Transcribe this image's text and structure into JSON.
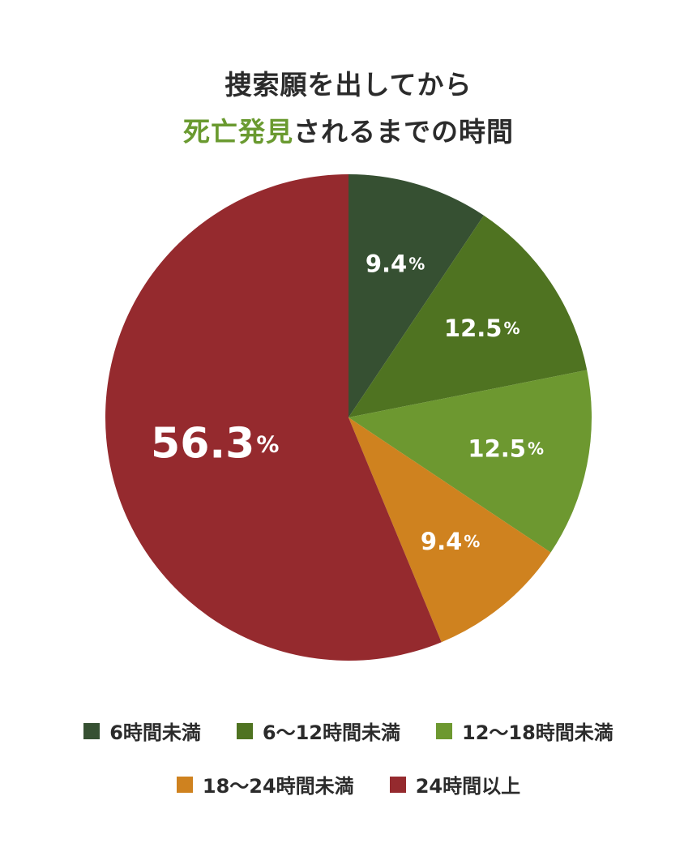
{
  "title": {
    "line1": "捜索願を出してから",
    "line2_accent": "死亡発見",
    "line2_rest": "されるまでの時間",
    "accent_color": "#6a9a30"
  },
  "chart_data": {
    "type": "pie",
    "start_angle_deg": 0,
    "direction": "clockwise",
    "slices": [
      {
        "label": "6時間未満",
        "value": 9.4,
        "color": "#365032"
      },
      {
        "label": "6〜12時間未満",
        "value": 12.5,
        "color": "#4f7321"
      },
      {
        "label": "12〜18時間未満",
        "value": 12.5,
        "color": "#6d9830"
      },
      {
        "label": "18〜24時間未満",
        "value": 9.4,
        "color": "#cf821f"
      },
      {
        "label": "24時間以上",
        "value": 56.3,
        "color": "#952a2e"
      }
    ],
    "unit": "%",
    "legend_position": "bottom"
  }
}
